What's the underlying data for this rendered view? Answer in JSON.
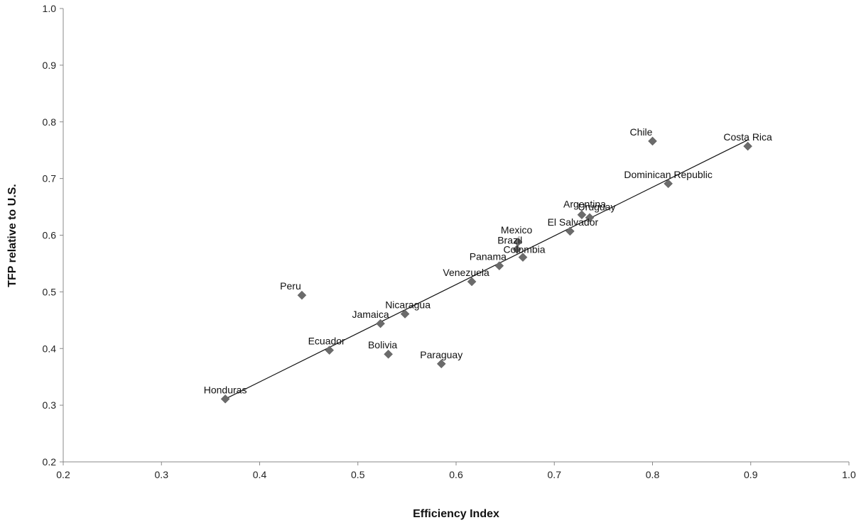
{
  "chart_data": {
    "type": "scatter",
    "xlabel": "Efficiency Index",
    "ylabel": "TFP relative to U.S.",
    "xlim": [
      0.2,
      1.0
    ],
    "ylim": [
      0.2,
      1.0
    ],
    "xticks": [
      0.2,
      0.3,
      0.4,
      0.5,
      0.6,
      0.7,
      0.8,
      0.9,
      1.0
    ],
    "yticks": [
      0.2,
      0.3,
      0.4,
      0.5,
      0.6,
      0.7,
      0.8,
      0.9,
      1.0
    ],
    "xtick_labels": [
      "0.2",
      "0.3",
      "0.4",
      "0.5",
      "0.6",
      "0.7",
      "0.8",
      "0.9",
      "1.0"
    ],
    "ytick_labels": [
      "0.2",
      "0.3",
      "0.4",
      "0.5",
      "0.6",
      "0.7",
      "0.8",
      "0.9",
      "1.0"
    ],
    "grid": false,
    "marker": "diamond",
    "marker_color": "#6b6b6b",
    "trendline": {
      "x": [
        0.365,
        0.897
      ],
      "y": [
        0.311,
        0.768
      ]
    },
    "points": [
      {
        "label": "Honduras",
        "x": 0.365,
        "y": 0.311
      },
      {
        "label": "Ecuador",
        "x": 0.471,
        "y": 0.397
      },
      {
        "label": "Peru",
        "x": 0.443,
        "y": 0.494
      },
      {
        "label": "Jamaica",
        "x": 0.523,
        "y": 0.444
      },
      {
        "label": "Bolivia",
        "x": 0.531,
        "y": 0.39
      },
      {
        "label": "Nicaragua",
        "x": 0.548,
        "y": 0.461
      },
      {
        "label": "Paraguay",
        "x": 0.585,
        "y": 0.373
      },
      {
        "label": "Venezuela",
        "x": 0.616,
        "y": 0.518
      },
      {
        "label": "Panama",
        "x": 0.644,
        "y": 0.546
      },
      {
        "label": "Brazil",
        "x": 0.662,
        "y": 0.575
      },
      {
        "label": "Mexico",
        "x": 0.663,
        "y": 0.588
      },
      {
        "label": "Colombia",
        "x": 0.668,
        "y": 0.561
      },
      {
        "label": "El Salvador",
        "x": 0.716,
        "y": 0.607
      },
      {
        "label": "Argentina",
        "x": 0.728,
        "y": 0.636
      },
      {
        "label": "Uruguay",
        "x": 0.736,
        "y": 0.631
      },
      {
        "label": "Dominican Republic",
        "x": 0.816,
        "y": 0.691
      },
      {
        "label": "Chile",
        "x": 0.8,
        "y": 0.766
      },
      {
        "label": "Costa Rica",
        "x": 0.897,
        "y": 0.757
      }
    ]
  }
}
